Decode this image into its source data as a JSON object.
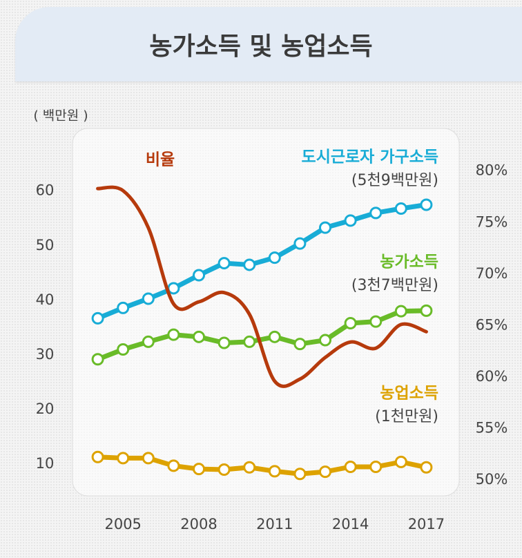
{
  "chart_data": {
    "type": "line",
    "title": "농가소득 및 농업소득",
    "y_label": "( 백만원 )",
    "x": [
      2004,
      2005,
      2006,
      2007,
      2008,
      2009,
      2010,
      2011,
      2012,
      2013,
      2014,
      2015,
      2016,
      2017
    ],
    "xlim": [
      2003,
      2018.3
    ],
    "xticks": [
      2005,
      2008,
      2011,
      2014,
      2017
    ],
    "ylim": [
      5.2,
      69.7
    ],
    "yticks": [
      10,
      20,
      30,
      40,
      50,
      60
    ],
    "y2lim": [
      49,
      83.2
    ],
    "y2ticks": [
      {
        "value": 50,
        "label": "50%"
      },
      {
        "value": 55,
        "label": "55%"
      },
      {
        "value": 60,
        "label": "60%"
      },
      {
        "value": 65,
        "label": "65%"
      },
      {
        "value": 70,
        "label": "70%"
      },
      {
        "value": 75,
        "label": "75%"
      },
      {
        "value": 80,
        "label": "80%"
      }
    ],
    "series": [
      {
        "name": "도시근로자 가구소득",
        "note": "(5천9백만원)",
        "color": "#18acd6",
        "markers": true,
        "values": [
          36.7,
          38.6,
          40.3,
          42.2,
          44.6,
          46.8,
          46.5,
          47.8,
          50.4,
          53.3,
          54.6,
          56.0,
          56.8,
          57.5
        ]
      },
      {
        "name": "농가소득",
        "note": "(3천7백만원)",
        "color": "#69bb28",
        "markers": true,
        "values": [
          29.2,
          31.0,
          32.4,
          33.7,
          33.3,
          32.2,
          32.4,
          33.3,
          32.0,
          32.7,
          35.8,
          36.1,
          38.0,
          38.1
        ]
      },
      {
        "name": "농업소득",
        "note": "(1천만원)",
        "color": "#dda200",
        "markers": true,
        "values": [
          11.3,
          11.1,
          11.1,
          9.7,
          9.1,
          9.0,
          9.4,
          8.7,
          8.2,
          8.6,
          9.5,
          9.5,
          10.4,
          9.4
        ]
      },
      {
        "name": "비율",
        "color": "#b63a0c",
        "axis": "y2",
        "markers": false,
        "values": [
          78.3,
          78.1,
          74.5,
          67.1,
          67.3,
          68.2,
          66.1,
          59.6,
          59.8,
          61.9,
          63.4,
          62.8,
          65.1,
          64.4
        ]
      }
    ]
  }
}
